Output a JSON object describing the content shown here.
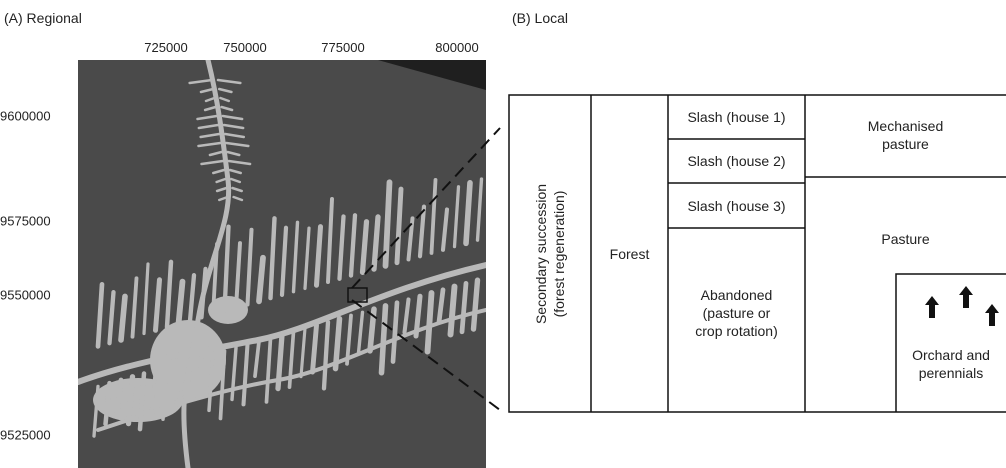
{
  "panels": {
    "regional_title": "(A) Regional",
    "local_title": "(B) Local"
  },
  "map": {
    "x_ticks": [
      "725000",
      "750000",
      "775000",
      "800000"
    ],
    "y_ticks": [
      "9600000",
      "9575000",
      "9550000",
      "9525000"
    ],
    "colors": {
      "background": "#4a4a4a",
      "cleared": "#b9b9b9",
      "dark_corner": "#1f1f1f"
    }
  },
  "local_diagram": {
    "secondary_succession": "Secondary succession\n(forest regeneration)",
    "forest": "Forest",
    "slash_1": "Slash (house 1)",
    "slash_2": "Slash (house 2)",
    "slash_3": "Slash (house 3)",
    "abandoned": "Abandoned\n(pasture or\ncrop rotation)",
    "mechanised_pasture": "Mechanised\npasture",
    "pasture": "Pasture",
    "orchard": "Orchard and\nperennials",
    "orchard_icons": [
      "tree-arrow-icon",
      "tree-arrow-icon",
      "tree-arrow-icon"
    ]
  }
}
